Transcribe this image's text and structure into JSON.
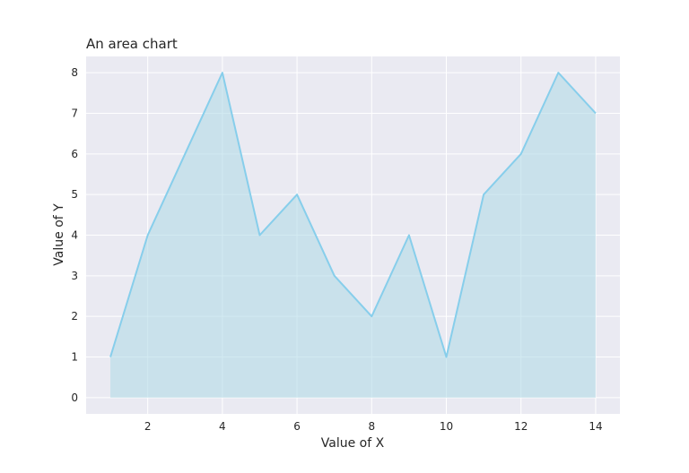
{
  "chart_data": {
    "type": "area",
    "title": "An area chart",
    "xlabel": "Value of X",
    "ylabel": "Value of Y",
    "x": [
      1,
      2,
      3,
      4,
      5,
      6,
      7,
      8,
      9,
      10,
      11,
      12,
      13,
      14
    ],
    "y": [
      1,
      4,
      6,
      8,
      4,
      5,
      3,
      2,
      4,
      1,
      5,
      6,
      8,
      7
    ],
    "xlim": [
      0.35,
      14.65
    ],
    "ylim": [
      -0.4,
      8.4
    ],
    "xticks": [
      2,
      4,
      6,
      8,
      10,
      12,
      14
    ],
    "yticks": [
      0,
      1,
      2,
      3,
      4,
      5,
      6,
      7,
      8
    ],
    "grid": true,
    "colors": {
      "background": "#eaeaf2",
      "grid": "#ffffff",
      "line": "#87ceeb",
      "fill": "#add8e6"
    }
  }
}
